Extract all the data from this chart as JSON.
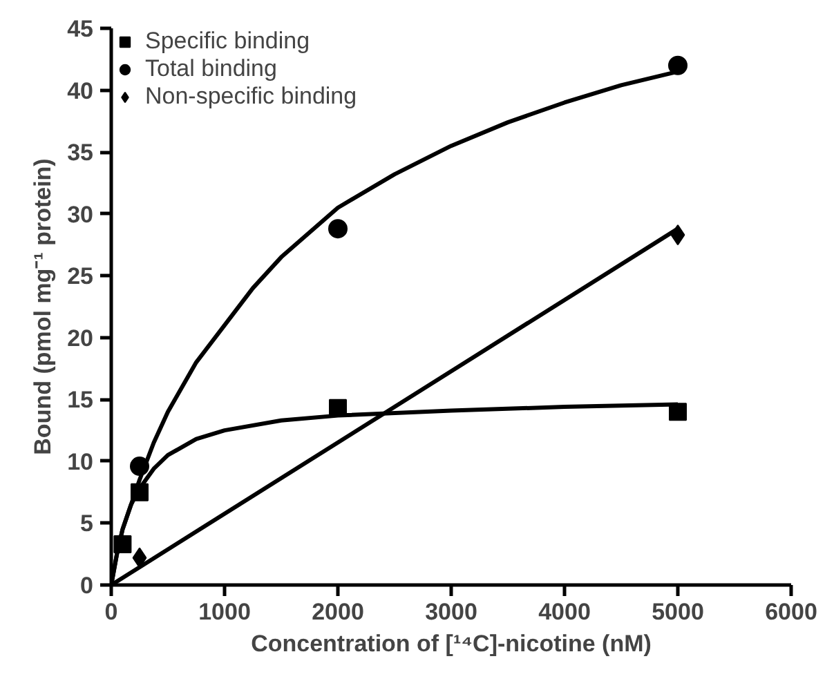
{
  "chart_data": {
    "type": "scatter",
    "xlabel": "Concentration of [¹⁴C]-nicotine (nM)",
    "ylabel": "Bound (pmol mg⁻¹ protein)",
    "xlim": [
      0,
      6000
    ],
    "xticks": [
      0,
      1000,
      2000,
      3000,
      4000,
      5000,
      6000
    ],
    "ylim": [
      0,
      45
    ],
    "yticks": [
      0,
      5,
      10,
      15,
      20,
      25,
      30,
      35,
      40,
      45
    ],
    "grid": false,
    "legend": "top left",
    "x": [
      100,
      250,
      2000,
      5000
    ],
    "series": [
      {
        "name": "Specific binding",
        "color": "#000000",
        "marker": "square",
        "values": [
          3.3,
          7.5,
          14.3,
          14
        ]
      },
      {
        "name": "Total binding",
        "color": "#000000",
        "marker": "circle",
        "values": [
          null,
          9.6,
          28.8,
          42
        ]
      },
      {
        "name": "Non-specific binding",
        "color": "#000000",
        "marker": "diamond",
        "values": [
          null,
          2.2,
          null,
          28.3
        ]
      },
      {
        "type": "line",
        "color": "#000000",
        "marker": "none",
        "x": [
          0,
          50,
          100,
          175,
          250,
          375,
          500,
          750,
          1000,
          1500,
          2000,
          3000,
          4000,
          5000
        ],
        "values": [
          0,
          2.5,
          4.5,
          6.5,
          7.8,
          9.4,
          10.5,
          11.8,
          12.5,
          13.3,
          13.7,
          14.1,
          14.4,
          14.6
        ]
      },
      {
        "type": "line",
        "color": "#000000",
        "marker": "none",
        "x": [
          0,
          50,
          100,
          250,
          375,
          500,
          750,
          1000,
          1250,
          1500,
          2000,
          2500,
          3000,
          3500,
          4000,
          4500,
          5000
        ],
        "values": [
          0,
          2.5,
          4.5,
          8.5,
          11.5,
          14,
          18,
          21,
          24,
          26.5,
          30.5,
          33.2,
          35.5,
          37.4,
          39,
          40.4,
          41.5
        ]
      },
      {
        "type": "line",
        "color": "#000000",
        "marker": "none",
        "x": [
          0,
          5000
        ],
        "values": [
          0,
          28.8
        ]
      }
    ]
  }
}
